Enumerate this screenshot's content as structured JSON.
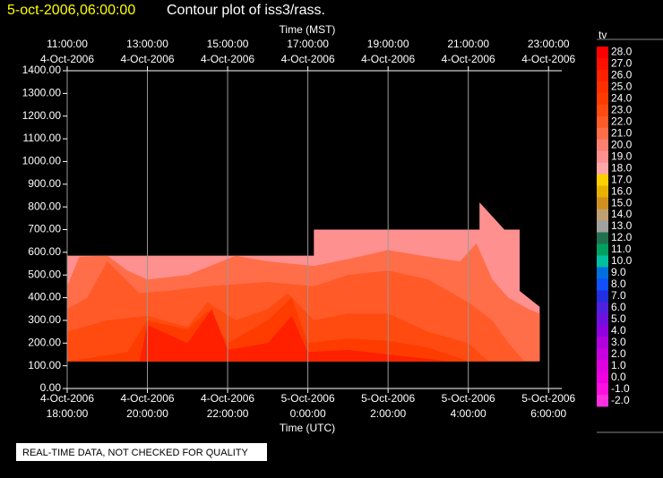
{
  "chart_data": {
    "type": "contour",
    "title": "5-oct-2006,06:00:00",
    "subtitle": "Contour plot of iss3/rass.",
    "x_label_top": "Time (MST)",
    "x_label": "Time (UTC)",
    "footer": "REAL-TIME DATA, NOT CHECKED FOR QUALITY",
    "xlim": [
      0,
      12.33
    ],
    "xticks": [
      {
        "value": 0,
        "label": [
          "4-Oct-2006",
          "18:00:00"
        ],
        "top_label": [
          "11:00:00",
          "4-Oct-2006"
        ]
      },
      {
        "value": 2,
        "label": [
          "4-Oct-2006",
          "20:00:00"
        ],
        "top_label": [
          "13:00:00",
          "4-Oct-2006"
        ]
      },
      {
        "value": 4,
        "label": [
          "4-Oct-2006",
          "22:00:00"
        ],
        "top_label": [
          "15:00:00",
          "4-Oct-2006"
        ]
      },
      {
        "value": 6,
        "label": [
          "5-Oct-2006",
          "0:00:00"
        ],
        "top_label": [
          "17:00:00",
          "4-Oct-2006"
        ]
      },
      {
        "value": 8,
        "label": [
          "5-Oct-2006",
          "2:00:00"
        ],
        "top_label": [
          "19:00:00",
          "4-Oct-2006"
        ]
      },
      {
        "value": 10,
        "label": [
          "5-Oct-2006",
          "4:00:00"
        ],
        "top_label": [
          "21:00:00",
          "4-Oct-2006"
        ]
      },
      {
        "value": 12,
        "label": [
          "5-Oct-2006",
          "6:00:00"
        ],
        "top_label": [
          "23:00:00",
          "4-Oct-2006"
        ]
      }
    ],
    "ylim": [
      0,
      1400
    ],
    "yticks": [
      {
        "value": 0,
        "label": "0.00"
      },
      {
        "value": 100,
        "label": "100.00"
      },
      {
        "value": 200,
        "label": "200.00"
      },
      {
        "value": 300,
        "label": "300.00"
      },
      {
        "value": 400,
        "label": "400.00"
      },
      {
        "value": 500,
        "label": "500.00"
      },
      {
        "value": 600,
        "label": "600.00"
      },
      {
        "value": 700,
        "label": "700.00"
      },
      {
        "value": 800,
        "label": "800.00"
      },
      {
        "value": 900,
        "label": "900.00"
      },
      {
        "value": 1000,
        "label": "1000.00"
      },
      {
        "value": 1100,
        "label": "1100.00"
      },
      {
        "value": 1200,
        "label": "1200.00"
      },
      {
        "value": 1300,
        "label": "1300.00"
      },
      {
        "value": 1400,
        "label": "1400.00"
      }
    ],
    "grid": true,
    "colorbar": {
      "title": "tv",
      "levels": [
        {
          "value": 28,
          "label": "28.0",
          "color": "#ff0000"
        },
        {
          "value": 27,
          "label": "27.0",
          "color": "#ff1000"
        },
        {
          "value": 26,
          "label": "26.0",
          "color": "#ff2000"
        },
        {
          "value": 25,
          "label": "25.0",
          "color": "#ff3000"
        },
        {
          "value": 24,
          "label": "24.0",
          "color": "#ff3c00"
        },
        {
          "value": 23,
          "label": "23.0",
          "color": "#ff4a10"
        },
        {
          "value": 22,
          "label": "22.0",
          "color": "#ff5a28"
        },
        {
          "value": 21,
          "label": "21.0",
          "color": "#ff6e48"
        },
        {
          "value": 20,
          "label": "20.0",
          "color": "#ff8070"
        },
        {
          "value": 19,
          "label": "19.0",
          "color": "#ff9090"
        },
        {
          "value": 18,
          "label": "18.0",
          "color": "#ffa8a8"
        },
        {
          "value": 17,
          "label": "17.0",
          "color": "#ffd000"
        },
        {
          "value": 16,
          "label": "16.0",
          "color": "#e8b000"
        },
        {
          "value": 15,
          "label": "15.0",
          "color": "#d09020"
        },
        {
          "value": 14,
          "label": "14.0",
          "color": "#c0a070"
        },
        {
          "value": 13,
          "label": "13.0",
          "color": "#a0a0a0"
        },
        {
          "value": 12,
          "label": "12.0",
          "color": "#207050"
        },
        {
          "value": 11,
          "label": "11.0",
          "color": "#00a060"
        },
        {
          "value": 10,
          "label": "10.0",
          "color": "#00c0a0"
        },
        {
          "value": 9,
          "label": "9.0",
          "color": "#0070e0"
        },
        {
          "value": 8,
          "label": "8.0",
          "color": "#1050ff"
        },
        {
          "value": 7,
          "label": "7.0",
          "color": "#2030e0"
        },
        {
          "value": 6,
          "label": "6.0",
          "color": "#5020e0"
        },
        {
          "value": 5,
          "label": "5.0",
          "color": "#7010e0"
        },
        {
          "value": 4,
          "label": "4.0",
          "color": "#9000e0"
        },
        {
          "value": 3,
          "label": "3.0",
          "color": "#b000e0"
        },
        {
          "value": 2,
          "label": "2.0",
          "color": "#c800e0"
        },
        {
          "value": 1,
          "label": "1.0",
          "color": "#e000e0"
        },
        {
          "value": 0,
          "label": "0.0",
          "color": "#f000e0"
        },
        {
          "value": -1,
          "label": "-1.0",
          "color": "#ff10e0"
        },
        {
          "value": -2,
          "label": "-2.0",
          "color": "#ff30e0"
        }
      ]
    },
    "contours": [
      {
        "level": 19,
        "x": [
          0,
          0,
          6.15,
          6.15,
          10.28,
          10.28,
          10.9,
          11.28,
          11.28,
          11.78,
          11.78
        ],
        "y": [
          120,
          585,
          585,
          700,
          700,
          820,
          700,
          700,
          430,
          360,
          120
        ]
      },
      {
        "level": 21,
        "x": [
          0,
          0,
          0.3,
          1,
          1.5,
          2,
          3,
          4.2,
          5,
          6.15,
          7,
          8,
          9,
          9.8,
          10.2,
          10.6,
          11,
          11.5,
          11.78,
          11.78
        ],
        "y": [
          120,
          450,
          580,
          585,
          520,
          480,
          500,
          585,
          560,
          540,
          570,
          610,
          580,
          560,
          640,
          480,
          400,
          350,
          330,
          120
        ]
      },
      {
        "level": 22,
        "x": [
          0,
          0,
          0.5,
          1,
          1.8,
          2.5,
          3.5,
          5,
          6.15,
          7,
          8,
          9,
          10,
          10.6,
          11,
          11.4
        ],
        "y": [
          120,
          350,
          400,
          560,
          420,
          430,
          450,
          470,
          450,
          500,
          520,
          480,
          380,
          300,
          200,
          120
        ]
      },
      {
        "level": 23,
        "x": [
          0,
          0,
          1,
          2,
          3,
          3.5,
          4.2,
          5,
          5.5,
          6.15,
          7,
          8,
          9,
          10,
          10.5
        ],
        "y": [
          120,
          250,
          300,
          320,
          270,
          380,
          300,
          350,
          420,
          300,
          330,
          330,
          250,
          200,
          120
        ]
      },
      {
        "level": 24,
        "x": [
          0,
          1.5,
          2,
          3,
          3.5,
          4,
          5,
          5.6,
          6,
          7,
          8,
          9,
          10
        ],
        "y": [
          120,
          160,
          300,
          260,
          340,
          200,
          300,
          400,
          200,
          220,
          210,
          180,
          120
        ]
      },
      {
        "level": 26,
        "x": [
          1.8,
          2,
          3,
          3.6,
          4,
          5,
          5.6,
          6,
          7,
          8,
          9,
          9.5
        ],
        "y": [
          120,
          280,
          200,
          350,
          170,
          200,
          320,
          160,
          170,
          150,
          130,
          120
        ]
      }
    ]
  }
}
